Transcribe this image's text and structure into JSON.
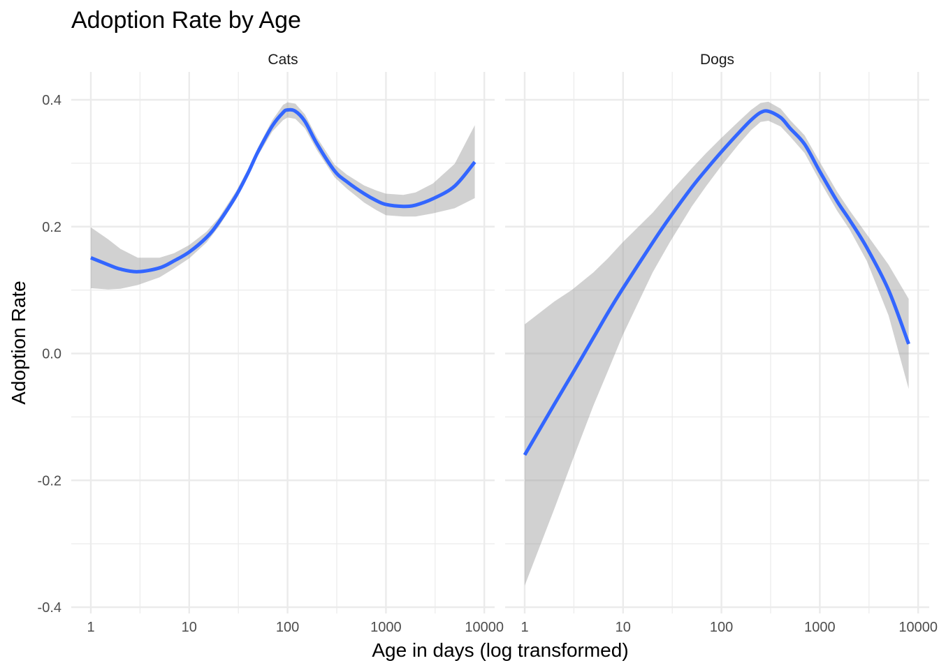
{
  "chart_data": {
    "type": "line",
    "title": "Adoption Rate by Age",
    "xlabel": "Age in days (log transformed)",
    "ylabel": "Adoption Rate",
    "x_scale": "log10",
    "xlim": [
      1,
      8000
    ],
    "ylim": [
      -0.4,
      0.4
    ],
    "x_ticks": [
      1,
      10,
      100,
      1000,
      10000
    ],
    "x_tick_labels": [
      "1",
      "10",
      "100",
      "1000",
      "10000"
    ],
    "y_ticks": [
      -0.4,
      -0.2,
      0.0,
      0.2,
      0.4
    ],
    "y_tick_labels": [
      "-0.4",
      "-0.2",
      "0.0",
      "0.2",
      "0.4"
    ],
    "grid": true,
    "line_color": "#3366FF",
    "band_color": "#999999",
    "panels": [
      {
        "name": "Cats",
        "x": [
          1,
          1.5,
          2,
          3,
          5,
          7,
          10,
          15,
          20,
          30,
          40,
          50,
          70,
          90,
          100,
          120,
          150,
          200,
          300,
          400,
          600,
          800,
          1000,
          1500,
          2000,
          3000,
          5000,
          8000
        ],
        "y": [
          0.151,
          0.14,
          0.133,
          0.129,
          0.135,
          0.146,
          0.16,
          0.183,
          0.207,
          0.249,
          0.286,
          0.318,
          0.359,
          0.38,
          0.384,
          0.382,
          0.366,
          0.33,
          0.288,
          0.271,
          0.252,
          0.241,
          0.235,
          0.232,
          0.234,
          0.244,
          0.264,
          0.302
        ],
        "ymin": [
          0.103,
          0.101,
          0.102,
          0.108,
          0.12,
          0.134,
          0.15,
          0.175,
          0.2,
          0.243,
          0.28,
          0.312,
          0.35,
          0.368,
          0.372,
          0.37,
          0.355,
          0.32,
          0.278,
          0.26,
          0.238,
          0.226,
          0.218,
          0.216,
          0.216,
          0.221,
          0.229,
          0.245
        ],
        "ymax": [
          0.199,
          0.18,
          0.165,
          0.151,
          0.151,
          0.158,
          0.171,
          0.192,
          0.214,
          0.256,
          0.292,
          0.325,
          0.368,
          0.392,
          0.396,
          0.394,
          0.377,
          0.34,
          0.298,
          0.282,
          0.265,
          0.257,
          0.252,
          0.25,
          0.254,
          0.268,
          0.299,
          0.36
        ]
      },
      {
        "name": "Dogs",
        "x": [
          1,
          2,
          3,
          5,
          7,
          10,
          20,
          30,
          50,
          70,
          100,
          150,
          200,
          250,
          300,
          400,
          500,
          700,
          1000,
          1500,
          2000,
          3000,
          5000,
          8000
        ],
        "y": [
          -0.16,
          -0.08,
          -0.034,
          0.025,
          0.064,
          0.103,
          0.175,
          0.215,
          0.262,
          0.29,
          0.318,
          0.348,
          0.368,
          0.38,
          0.382,
          0.372,
          0.355,
          0.33,
          0.287,
          0.24,
          0.211,
          0.167,
          0.1,
          0.015
        ],
        "ymin": [
          -0.366,
          -0.245,
          -0.172,
          -0.082,
          -0.028,
          0.03,
          0.128,
          0.176,
          0.232,
          0.264,
          0.296,
          0.33,
          0.352,
          0.365,
          0.367,
          0.358,
          0.342,
          0.316,
          0.272,
          0.225,
          0.196,
          0.146,
          0.06,
          -0.056
        ],
        "ymax": [
          0.046,
          0.082,
          0.1,
          0.128,
          0.15,
          0.176,
          0.222,
          0.254,
          0.292,
          0.316,
          0.34,
          0.366,
          0.384,
          0.395,
          0.397,
          0.386,
          0.368,
          0.344,
          0.302,
          0.255,
          0.226,
          0.188,
          0.14,
          0.086
        ]
      }
    ]
  }
}
